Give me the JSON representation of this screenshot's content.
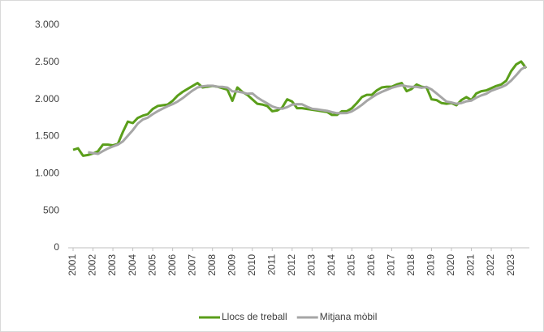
{
  "chart_data": {
    "type": "line",
    "categories": [
      "2001",
      null,
      null,
      null,
      "2002",
      null,
      null,
      null,
      "2003",
      null,
      null,
      null,
      "2004",
      null,
      null,
      null,
      "2005",
      null,
      null,
      null,
      "2006",
      null,
      null,
      null,
      "2007",
      null,
      null,
      null,
      "2008",
      null,
      null,
      null,
      "2009",
      null,
      null,
      null,
      "2010",
      null,
      null,
      null,
      "2011",
      null,
      null,
      null,
      "2012",
      null,
      null,
      null,
      "2013",
      null,
      null,
      null,
      "2014",
      null,
      null,
      null,
      "2015",
      null,
      null,
      null,
      "2016",
      null,
      null,
      null,
      "2017",
      null,
      null,
      null,
      "2018",
      null,
      null,
      null,
      "2019",
      null,
      null,
      null,
      "2020",
      null,
      null,
      null,
      "2021",
      null,
      null,
      null,
      "2022",
      null,
      null,
      null,
      "2023",
      null,
      null,
      null
    ],
    "series": [
      {
        "name": "Llocs de treball",
        "color": "#5a9e1a",
        "width": 3,
        "values": [
          1320,
          1340,
          1240,
          1250,
          1270,
          1300,
          1390,
          1390,
          1380,
          1400,
          1560,
          1700,
          1680,
          1750,
          1780,
          1800,
          1870,
          1910,
          1920,
          1930,
          1980,
          2050,
          2100,
          2140,
          2180,
          2220,
          2160,
          2170,
          2180,
          2170,
          2150,
          2130,
          1980,
          2160,
          2100,
          2060,
          2000,
          1940,
          1930,
          1910,
          1840,
          1850,
          1890,
          2000,
          1970,
          1880,
          1880,
          1870,
          1860,
          1850,
          1840,
          1830,
          1790,
          1790,
          1840,
          1840,
          1880,
          1950,
          2030,
          2060,
          2060,
          2120,
          2160,
          2170,
          2170,
          2200,
          2220,
          2110,
          2140,
          2200,
          2170,
          2160,
          2000,
          1990,
          1950,
          1940,
          1950,
          1920,
          1990,
          2030,
          1990,
          2080,
          2110,
          2120,
          2150,
          2180,
          2200,
          2250,
          2380,
          2470,
          2510,
          2420
        ]
      },
      {
        "name": "Mitjana mòbil",
        "color": "#a6a6a6",
        "width": 3,
        "values": [
          null,
          null,
          null,
          1288,
          1275,
          1265,
          1303,
          1338,
          1365,
          1390,
          1433,
          1510,
          1585,
          1673,
          1728,
          1753,
          1800,
          1840,
          1875,
          1908,
          1935,
          1970,
          2015,
          2068,
          2118,
          2160,
          2175,
          2183,
          2183,
          2170,
          2168,
          2158,
          2108,
          2105,
          2093,
          2075,
          2080,
          2025,
          1983,
          1945,
          1905,
          1883,
          1873,
          1895,
          1928,
          1935,
          1933,
          1900,
          1873,
          1865,
          1855,
          1845,
          1828,
          1813,
          1813,
          1815,
          1838,
          1878,
          1925,
          1980,
          2025,
          2068,
          2100,
          2128,
          2155,
          2175,
          2190,
          2175,
          2168,
          2168,
          2155,
          2168,
          2133,
          2080,
          2025,
          1970,
          1958,
          1940,
          1950,
          1973,
          1983,
          2023,
          2053,
          2075,
          2115,
          2140,
          2163,
          2195,
          2253,
          2325,
          2403,
          2445
        ]
      }
    ],
    "ylim": [
      0,
      3000
    ],
    "yticks": [
      0,
      500,
      {
        "value": 1000,
        "label": "1.000"
      },
      {
        "value": 1500,
        "label": "1.500"
      },
      {
        "value": 2000,
        "label": "2.000"
      },
      {
        "value": 2500,
        "label": "2.500"
      },
      {
        "value": 3000,
        "label": "3.000"
      }
    ],
    "grid": false,
    "legend": "bottom"
  }
}
